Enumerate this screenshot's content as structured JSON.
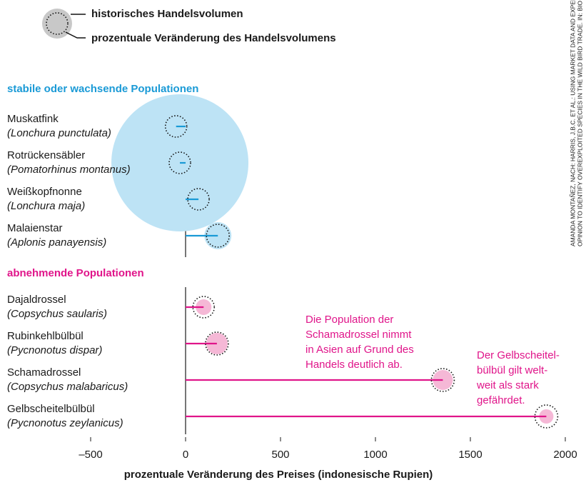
{
  "chart_data": {
    "type": "bubble",
    "legend": {
      "historical_volume": "historisches Handelsvolumen",
      "volume_change": "prozentuale Veränderung des Handelsvolumens"
    },
    "xlabel": "prozentuale Veränderung des Preises (indonesische Rupien)",
    "xlim": [
      -500,
      2000
    ],
    "xticks": [
      {
        "value": -500,
        "label": "–500"
      },
      0,
      500,
      1000,
      1500,
      2000
    ],
    "groups": [
      {
        "name": "stabile oder wachsende Populationen",
        "color": "#1a9ad6",
        "fill": "#bde3f5",
        "species": [
          {
            "name": "Muskatfink",
            "latin": "(Lonchura punctulata)",
            "price_change": -50,
            "historical_volume": 196,
            "volume_change": 225
          },
          {
            "name": "Rotrückensäbler",
            "latin": "(Pomatorhinus montanus)",
            "price_change": -30,
            "historical_volume": 9216,
            "volume_change": 225
          },
          {
            "name": "Weißkopfnonne",
            "latin": "(Lonchura maja)",
            "price_change": 68,
            "historical_volume": 225,
            "volume_change": 225
          },
          {
            "name": "Malaienstar",
            "latin": "(Aplonis panayensis)",
            "price_change": 170,
            "historical_volume": 361,
            "volume_change": 256
          }
        ]
      },
      {
        "name": "abnehmende Populationen",
        "color": "#e0158a",
        "fill": "#f5b8d6",
        "species": [
          {
            "name": "Dajaldrossel",
            "latin": "(Copsychus saularis)",
            "price_change": 95,
            "historical_volume": 121,
            "volume_change": 225
          },
          {
            "name": "Rubinkehlbülbül",
            "latin": "(Pycnonotus dispar)",
            "price_change": 165,
            "historical_volume": 225,
            "volume_change": 256
          },
          {
            "name": "Schamadrossel",
            "latin": "(Copsychus malabaricus)",
            "price_change": 1355,
            "historical_volume": 196,
            "volume_change": 256
          },
          {
            "name": "Gelbscheitelbülbül",
            "latin": "(Pycnonotus zeylanicus)",
            "price_change": 1900,
            "historical_volume": 100,
            "volume_change": 256
          }
        ]
      }
    ],
    "annotations": [
      {
        "lines": [
          "Die Population der",
          "Schamadrossel nimmt",
          "in Asien auf Grund des",
          "Handels deutlich ab."
        ]
      },
      {
        "lines": [
          "Der Gelbscheitel-",
          "bülbül gilt welt-",
          "weit als stark",
          "gefährdet."
        ]
      }
    ],
    "credit": [
      "AMANDA MONTAÑEZ, NACH: HARRIS, J.B.C. ET AL.: USING MARKET DATA AND EXPERT",
      "OPINION TO IDENTIFY OVEREXPLOITED SPECIES IN THE WILD BIRD TRADE. IN: BIO"
    ]
  }
}
